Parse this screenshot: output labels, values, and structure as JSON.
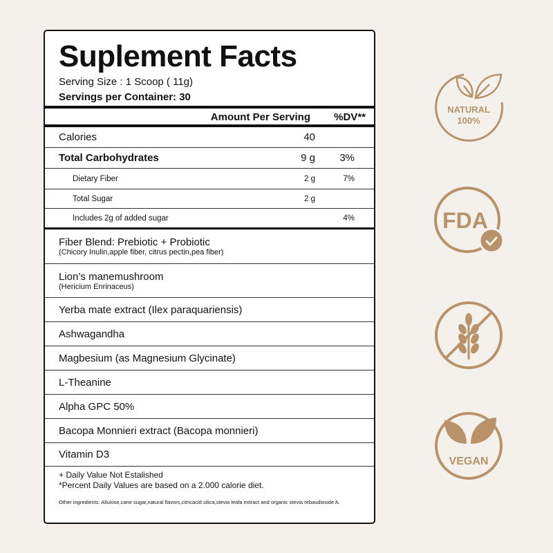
{
  "title": "Suplement Facts",
  "serving_size": "Serving Size : 1 Scoop ( 11g)",
  "servings_per_container": "Servings per Container: 30",
  "header": {
    "amount": "Amount Per Serving",
    "dv": "%DV**"
  },
  "nutrients": [
    {
      "name": "Calories",
      "amount": "40",
      "dv": ""
    },
    {
      "name": "Total Carbohydrates",
      "amount": "9 g",
      "dv": "3%"
    },
    {
      "name": "Dietary Fiber",
      "amount": "2 g",
      "dv": "7%"
    },
    {
      "name": "Total Sugar",
      "amount": "2 g",
      "dv": ""
    },
    {
      "name": "Includes 2g of added sugar",
      "amount": "",
      "dv": "4%"
    }
  ],
  "ingredients": [
    {
      "name": "Fiber Blend: Prebiotic + Probiotic",
      "sub": "(Chicory Inulin,apple fiber, citrus pectin,pea fiber)"
    },
    {
      "name": "Lion’s manemushroom",
      "sub": "(Hericium Enrinaceus)"
    },
    {
      "name": "Yerba mate extract (Ilex paraquariensis)"
    },
    {
      "name": "Ashwagandha"
    },
    {
      "name": "Magbesium (as Magnesium Glycinate)"
    },
    {
      "name": "L-Theanine"
    },
    {
      "name": "Alpha GPC 50%"
    },
    {
      "name": "Bacopa Monnieri extract (Bacopa monnieri)"
    },
    {
      "name": "Vitamin D3"
    }
  ],
  "footer": {
    "line1": "+ Daily Value Not Estalished",
    "line2": "*Percent Daily Values are based on a 2.000 calorie diet.",
    "other": "Other ingredients: Allulose,cane sugar,natural flavors,citricacid silica,stevia leafa extract and organic stevia rebaudioside A."
  },
  "badges": {
    "natural": {
      "line1": "NATURAL",
      "line2": "100%"
    },
    "fda": "FDA",
    "vegan": "VEGAN"
  },
  "colors": {
    "background": "#f4f1ec",
    "accent": "#b8936a"
  }
}
